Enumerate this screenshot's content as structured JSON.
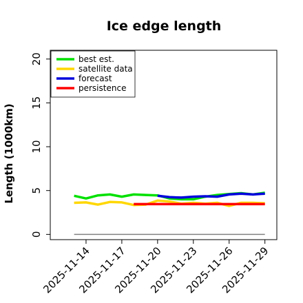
{
  "chart_data": {
    "type": "line",
    "title": "Ice edge length",
    "xlabel": "",
    "ylabel": "Length (1000km)",
    "ylim": [
      -0.6,
      21
    ],
    "xlim": [
      "2025-11-11",
      "2025-11-30"
    ],
    "yticks": [
      "0",
      "5",
      "10",
      "15",
      "20"
    ],
    "xticks": [
      {
        "label": "2025-11-14",
        "color": "#000000"
      },
      {
        "label": "2025-11-17",
        "color": "#000000"
      },
      {
        "label": "2025-11-20",
        "color": "#008000"
      },
      {
        "label": "2025-11-23",
        "color": "#000000"
      },
      {
        "label": "2025-11-26",
        "color": "#000000"
      },
      {
        "label": "2025-11-29",
        "color": "#000000"
      }
    ],
    "grid": false,
    "legend_position": "top-left",
    "baseline": {
      "value": 0,
      "x": [
        "2025-11-13",
        "2025-11-29"
      ],
      "color": "#808080"
    },
    "series": [
      {
        "name": "best est.",
        "color": "#00e000",
        "x": [
          "2025-11-13",
          "2025-11-14",
          "2025-11-15",
          "2025-11-16",
          "2025-11-17",
          "2025-11-18",
          "2025-11-19",
          "2025-11-20",
          "2025-11-21",
          "2025-11-22",
          "2025-11-23",
          "2025-11-24",
          "2025-11-25",
          "2025-11-26",
          "2025-11-27",
          "2025-11-28",
          "2025-11-29"
        ],
        "y": [
          4.4,
          4.1,
          4.45,
          4.55,
          4.3,
          4.55,
          4.5,
          4.45,
          4.1,
          4.0,
          4.0,
          4.3,
          4.5,
          4.6,
          4.7,
          4.55,
          4.75
        ]
      },
      {
        "name": "satellite data",
        "color": "#ffd700",
        "x": [
          "2025-11-13",
          "2025-11-14",
          "2025-11-15",
          "2025-11-16",
          "2025-11-17",
          "2025-11-18",
          "2025-11-19",
          "2025-11-20",
          "2025-11-21",
          "2025-11-22",
          "2025-11-23",
          "2025-11-24",
          "2025-11-25",
          "2025-11-26",
          "2025-11-27",
          "2025-11-28",
          "2025-11-29"
        ],
        "y": [
          3.6,
          3.65,
          3.4,
          3.7,
          3.65,
          3.35,
          3.4,
          3.85,
          3.75,
          3.5,
          3.6,
          3.5,
          3.6,
          3.25,
          3.6,
          3.6,
          3.55
        ]
      },
      {
        "name": "forecast",
        "color": "#0000dd",
        "x": [
          "2025-11-20",
          "2025-11-21",
          "2025-11-22",
          "2025-11-23",
          "2025-11-24",
          "2025-11-25",
          "2025-11-26",
          "2025-11-27",
          "2025-11-28",
          "2025-11-29"
        ],
        "y": [
          4.4,
          4.25,
          4.2,
          4.3,
          4.35,
          4.3,
          4.55,
          4.65,
          4.55,
          4.65
        ]
      },
      {
        "name": "persistence",
        "color": "#ff0000",
        "x": [
          "2025-11-18",
          "2025-11-29"
        ],
        "y": [
          3.45,
          3.45
        ]
      }
    ]
  }
}
